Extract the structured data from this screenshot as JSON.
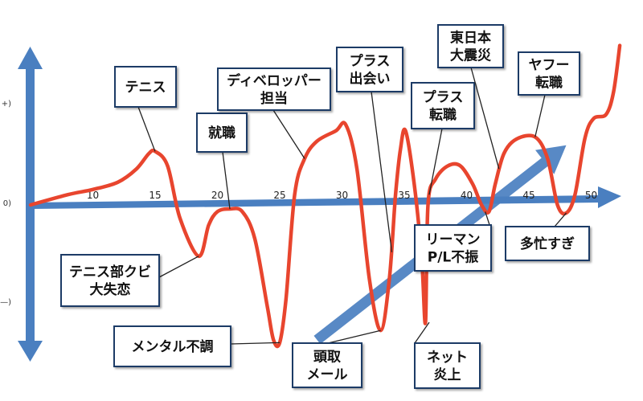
{
  "chart_data": {
    "type": "line",
    "title": "",
    "xlabel": "",
    "ylabel": "",
    "xlim": [
      5,
      53
    ],
    "ylim": [
      -1.1,
      1.55
    ],
    "x_ticks": [
      10,
      15,
      20,
      25,
      30,
      35,
      40,
      45,
      50
    ],
    "y_tick_labels": [
      "+)",
      "0)",
      "—)"
    ],
    "colors": {
      "line": "#e8452e",
      "axis": "#4a7fc0",
      "trend": "#4a7fc0",
      "box": "#1f3b66"
    },
    "series": [
      {
        "values": [
          [
            5,
            0
          ],
          [
            8,
            0.1
          ],
          [
            10,
            0.15
          ],
          [
            12,
            0.22
          ],
          [
            13.5,
            0.35
          ],
          [
            14.5,
            0.5
          ],
          [
            15,
            0.52
          ],
          [
            16,
            0.38
          ],
          [
            17,
            -0.1
          ],
          [
            18.5,
            -0.38
          ],
          [
            19.3,
            -0.15
          ],
          [
            20,
            -0.05
          ],
          [
            21,
            -0.03
          ],
          [
            22,
            -0.05
          ],
          [
            23,
            -0.25
          ],
          [
            24,
            -0.75
          ],
          [
            24.5,
            -1.0
          ],
          [
            25,
            -1.02
          ],
          [
            25.5,
            -0.7
          ],
          [
            26.2,
            0.1
          ],
          [
            27,
            0.45
          ],
          [
            28,
            0.62
          ],
          [
            29.5,
            0.72
          ],
          [
            30.3,
            0.78
          ],
          [
            31.2,
            0.35
          ],
          [
            32.2,
            -0.55
          ],
          [
            33.1,
            -0.93
          ],
          [
            33.8,
            -0.55
          ],
          [
            34.3,
            0.1
          ],
          [
            34.7,
            0.55
          ],
          [
            35.1,
            0.72
          ],
          [
            35.8,
            0.2
          ],
          [
            36.4,
            -0.4
          ],
          [
            36.7,
            -0.87
          ],
          [
            36.9,
            0.0
          ],
          [
            37.5,
            0.25
          ],
          [
            38.5,
            0.38
          ],
          [
            39.5,
            0.38
          ],
          [
            40.5,
            0.2
          ],
          [
            41.2,
            0.0
          ],
          [
            41.8,
            -0.05
          ],
          [
            42.3,
            0.2
          ],
          [
            43,
            0.5
          ],
          [
            44,
            0.64
          ],
          [
            45.5,
            0.66
          ],
          [
            46.5,
            0.45
          ],
          [
            47.3,
            0.0
          ],
          [
            48,
            -0.06
          ],
          [
            48.7,
            0.1
          ],
          [
            49.5,
            0.65
          ],
          [
            50.2,
            0.84
          ],
          [
            51.2,
            0.88
          ],
          [
            51.8,
            1.1
          ],
          [
            52.3,
            1.55
          ]
        ]
      }
    ],
    "trend_arrow": {
      "from": [
        28,
        -1.0
      ],
      "to": [
        48,
        0.58
      ]
    },
    "annotations": [
      {
        "text": [
          "テニス"
        ],
        "point": [
          15,
          0.52
        ]
      },
      {
        "text": [
          "テニス部クビ",
          "大失恋"
        ],
        "point": [
          18.5,
          -0.38
        ]
      },
      {
        "text": [
          "就職"
        ],
        "point": [
          21,
          -0.03
        ]
      },
      {
        "text": [
          "メンタル不調"
        ],
        "point": [
          25,
          -1.02
        ]
      },
      {
        "text": [
          "ディベロッパー",
          "担当"
        ],
        "point": [
          27,
          0.45
        ]
      },
      {
        "text": [
          "プラス",
          "出会い"
        ],
        "point": [
          34,
          -0.35
        ]
      },
      {
        "text": [
          "頭取",
          "メール"
        ],
        "point": [
          33.1,
          -0.93
        ]
      },
      {
        "text": [
          "プラス",
          "転職"
        ],
        "point": [
          37,
          0.1
        ]
      },
      {
        "text": [
          "ネット",
          "炎上"
        ],
        "point": [
          37,
          -0.87
        ]
      },
      {
        "text": [
          "東日本",
          "大震災"
        ],
        "point": [
          42.6,
          0.35
        ]
      },
      {
        "text": [
          "リーマン",
          "P/L不振"
        ],
        "point": [
          41.5,
          -0.05
        ]
      },
      {
        "text": [
          "ヤフー",
          "転職"
        ],
        "point": [
          45.5,
          0.66
        ]
      },
      {
        "text": [
          "多忙すぎ"
        ],
        "point": [
          48,
          -0.06
        ]
      }
    ]
  }
}
